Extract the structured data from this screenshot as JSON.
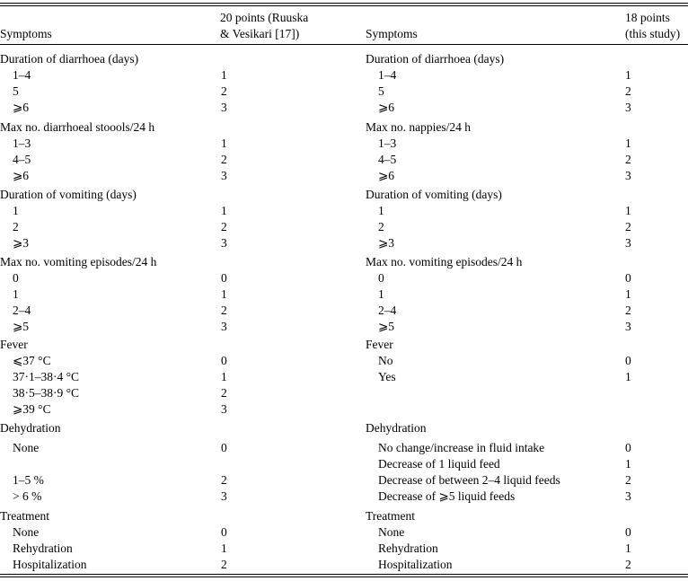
{
  "headers": {
    "left_symptoms": "Symptoms",
    "left_score_line1": "20 points (Ruuska",
    "left_score_line2": "& Vesikari [17])",
    "right_symptoms": "Symptoms",
    "right_score_line1": "18 points",
    "right_score_line2": "(this study)"
  },
  "rows": [
    {
      "lt": "Duration of diarrhoea (days)",
      "li": false,
      "lv": "",
      "rt": "Duration of diarrhoea (days)",
      "ri": false,
      "rv": ""
    },
    {
      "lt": "1–4",
      "li": true,
      "lv": "1",
      "rt": "1–4",
      "ri": true,
      "rv": "1"
    },
    {
      "lt": "5",
      "li": true,
      "lv": "2",
      "rt": "5",
      "ri": true,
      "rv": "2"
    },
    {
      "lt": "⩾6",
      "li": true,
      "lv": "3",
      "rt": "⩾6",
      "ri": true,
      "rv": "3"
    },
    {
      "lt": "Max no. diarrhoeal stoools/24 h",
      "li": false,
      "lv": "",
      "rt": "Max no. nappies/24 h",
      "ri": false,
      "rv": ""
    },
    {
      "lt": "1–3",
      "li": true,
      "lv": "1",
      "rt": "1–3",
      "ri": true,
      "rv": "1"
    },
    {
      "lt": "4–5",
      "li": true,
      "lv": "2",
      "rt": "4–5",
      "ri": true,
      "rv": "2"
    },
    {
      "lt": "⩾6",
      "li": true,
      "lv": "3",
      "rt": "⩾6",
      "ri": true,
      "rv": "3"
    },
    {
      "lt": "Duration of vomiting (days)",
      "li": false,
      "lv": "",
      "rt": "Duration of vomiting (days)",
      "ri": false,
      "rv": ""
    },
    {
      "lt": "1",
      "li": true,
      "lv": "1",
      "rt": "1",
      "ri": true,
      "rv": "1"
    },
    {
      "lt": "2",
      "li": true,
      "lv": "2",
      "rt": "2",
      "ri": true,
      "rv": "2"
    },
    {
      "lt": "⩾3",
      "li": true,
      "lv": "3",
      "rt": "⩾3",
      "ri": true,
      "rv": "3"
    },
    {
      "lt": "Max no. vomiting episodes/24 h",
      "li": false,
      "lv": "",
      "rt": "Max no. vomiting episodes/24 h",
      "ri": false,
      "rv": ""
    },
    {
      "lt": "0",
      "li": true,
      "lv": "0",
      "rt": "0",
      "ri": true,
      "rv": "0"
    },
    {
      "lt": "1",
      "li": true,
      "lv": "1",
      "rt": "1",
      "ri": true,
      "rv": "1"
    },
    {
      "lt": "2–4",
      "li": true,
      "lv": "2",
      "rt": "2–4",
      "ri": true,
      "rv": "2"
    },
    {
      "lt": "⩾5",
      "li": true,
      "lv": "3",
      "rt": "⩾5",
      "ri": true,
      "rv": "3"
    },
    {
      "lt": "Fever",
      "li": false,
      "lv": "",
      "rt": "Fever",
      "ri": false,
      "rv": ""
    },
    {
      "lt": "⩽37 °C",
      "li": true,
      "lv": "0",
      "rt": "No",
      "ri": true,
      "rv": "0"
    },
    {
      "lt": "37·1–38·4 °C",
      "li": true,
      "lv": "1",
      "rt": "Yes",
      "ri": true,
      "rv": "1"
    },
    {
      "lt": "38·5–38·9 °C",
      "li": true,
      "lv": "2",
      "rt": "",
      "ri": true,
      "rv": ""
    },
    {
      "lt": "⩾39 °C",
      "li": true,
      "lv": "3",
      "rt": "",
      "ri": true,
      "rv": ""
    },
    {
      "lt": "Dehydration",
      "li": false,
      "lv": "",
      "rt": "Dehydration",
      "ri": false,
      "rv": ""
    },
    {
      "lt": "None",
      "li": true,
      "lv": "0",
      "rt": "No change/increase in fluid intake",
      "ri": true,
      "rv": "0"
    },
    {
      "lt": "",
      "li": true,
      "lv": "",
      "rt": "Decrease of 1 liquid feed",
      "ri": true,
      "rv": "1"
    },
    {
      "lt": "1–5 %",
      "li": true,
      "lv": "2",
      "rt": "Decrease of between 2–4 liquid feeds",
      "ri": true,
      "rv": "2"
    },
    {
      "lt": "> 6 %",
      "li": true,
      "lv": "3",
      "rt": "Decrease of ⩾5 liquid feeds",
      "ri": true,
      "rv": "3"
    },
    {
      "lt": "Treatment",
      "li": false,
      "lv": "",
      "rt": "Treatment",
      "ri": false,
      "rv": ""
    },
    {
      "lt": "None",
      "li": true,
      "lv": "0",
      "rt": "None",
      "ri": true,
      "rv": "0"
    },
    {
      "lt": "Rehydration",
      "li": true,
      "lv": "1",
      "rt": "Rehydration",
      "ri": true,
      "rv": "1"
    },
    {
      "lt": "Hospitalization",
      "li": true,
      "lv": "2",
      "rt": "Hospitalization",
      "ri": true,
      "rv": "2"
    }
  ]
}
